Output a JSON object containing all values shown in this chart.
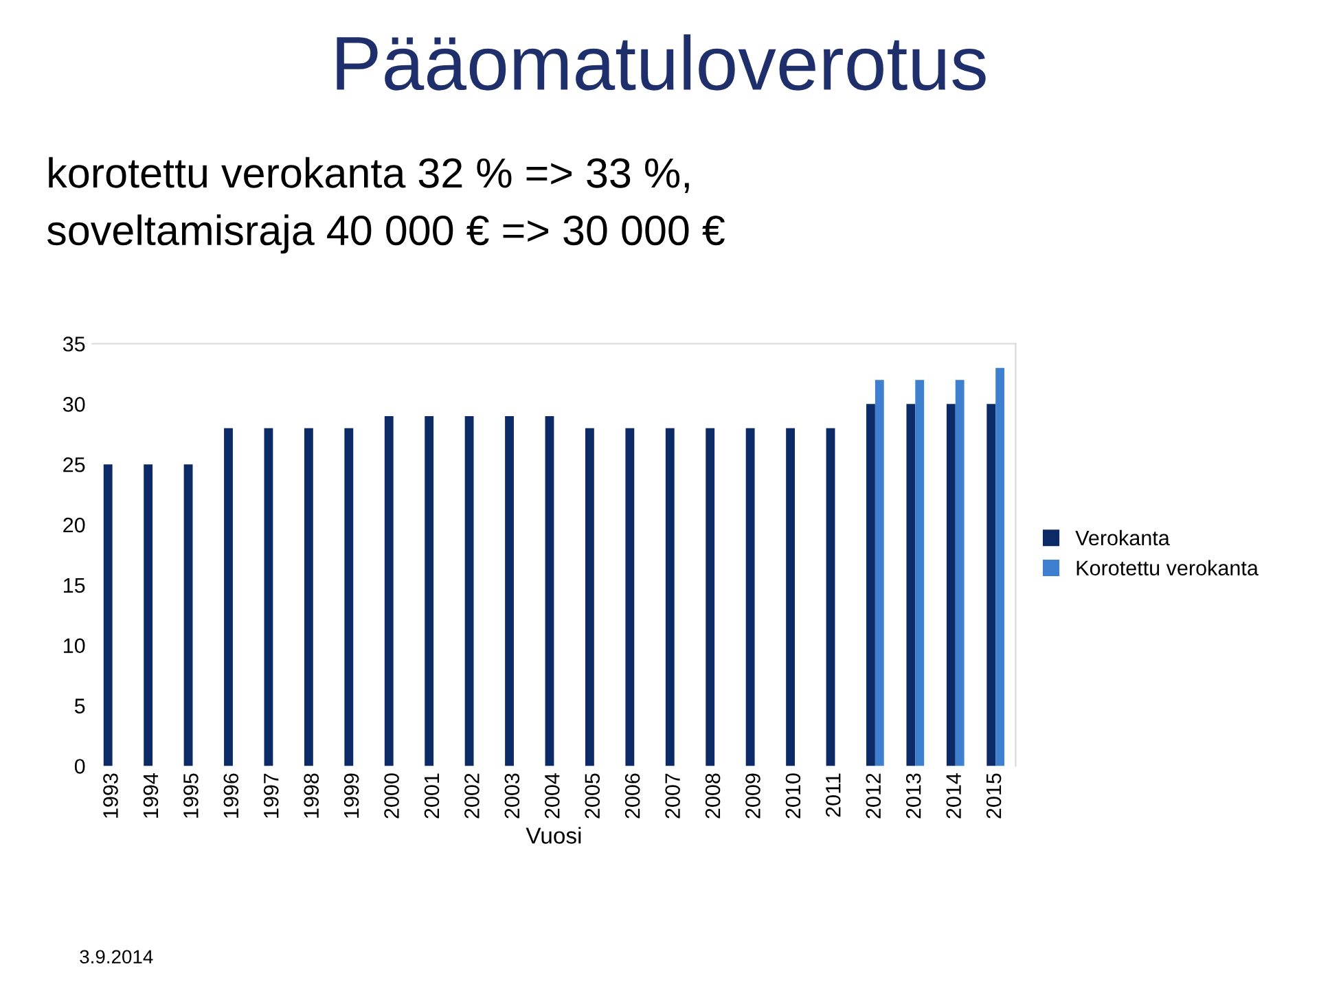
{
  "chart_data": {
    "type": "bar",
    "title": "Pääomatuloverotus",
    "subtitle": "korotettu verokanta 32 % => 33 %,\nsoveltamisraja 40 000 € => 30 000 €",
    "xlabel": "Vuosi",
    "categories": [
      "1993",
      "1994",
      "1995",
      "1996",
      "1997",
      "1998",
      "1999",
      "2000",
      "2001",
      "2002",
      "2003",
      "2004",
      "2005",
      "2006",
      "2007",
      "2008",
      "2009",
      "2010",
      "2011",
      "2012",
      "2013",
      "2014",
      "2015"
    ],
    "series": [
      {
        "name": "Verokanta",
        "color": "#0c2a66",
        "values": [
          25,
          25,
          25,
          28,
          28,
          28,
          28,
          29,
          29,
          29,
          29,
          29,
          28,
          28,
          28,
          28,
          28,
          28,
          28,
          30,
          30,
          30,
          30
        ]
      },
      {
        "name": "Korotettu verokanta",
        "color": "#3f7fd0",
        "values": [
          null,
          null,
          null,
          null,
          null,
          null,
          null,
          null,
          null,
          null,
          null,
          null,
          null,
          null,
          null,
          null,
          null,
          null,
          null,
          32,
          32,
          32,
          33
        ]
      }
    ],
    "ylim": [
      0,
      35
    ],
    "yticks": [
      0,
      5,
      10,
      15,
      20,
      25,
      30,
      35
    ],
    "grid": false,
    "legend": "right",
    "annotations": [
      "3.9.2014"
    ]
  }
}
